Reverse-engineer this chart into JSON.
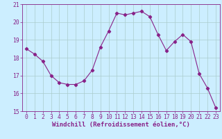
{
  "x": [
    0,
    1,
    2,
    3,
    4,
    5,
    6,
    7,
    8,
    9,
    10,
    11,
    12,
    13,
    14,
    15,
    16,
    17,
    18,
    19,
    20,
    21,
    22,
    23
  ],
  "y": [
    18.5,
    18.2,
    17.8,
    17.0,
    16.6,
    16.5,
    16.5,
    16.7,
    17.3,
    18.6,
    19.5,
    20.5,
    20.4,
    20.5,
    20.6,
    20.3,
    19.3,
    18.4,
    18.9,
    19.3,
    18.9,
    17.1,
    16.3,
    15.2
  ],
  "line_color": "#882288",
  "marker": "D",
  "marker_size": 2.2,
  "bg_color": "#cceeff",
  "grid_color": "#aacccc",
  "xlabel": "Windchill (Refroidissement éolien,°C)",
  "ylim": [
    15,
    21
  ],
  "xlim_min": -0.5,
  "xlim_max": 23.5,
  "yticks": [
    15,
    16,
    17,
    18,
    19,
    20,
    21
  ],
  "xticks": [
    0,
    1,
    2,
    3,
    4,
    5,
    6,
    7,
    8,
    9,
    10,
    11,
    12,
    13,
    14,
    15,
    16,
    17,
    18,
    19,
    20,
    21,
    22,
    23
  ],
  "tick_color": "#882288",
  "label_fontsize": 6.5,
  "tick_fontsize": 5.8
}
